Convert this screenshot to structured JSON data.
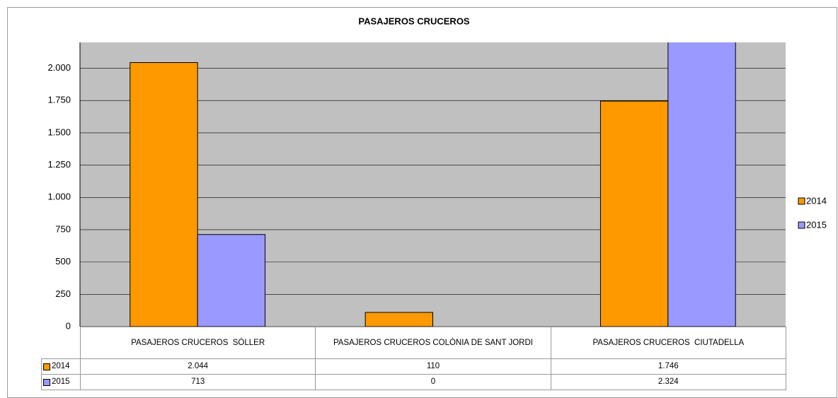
{
  "chart_data": {
    "type": "bar",
    "title": "PASAJEROS CRUCEROS",
    "categories": [
      "PASAJEROS CRUCEROS  SÓLLER",
      "PASAJEROS CRUCEROS COLÒNIA DE SANT JORDI",
      "PASAJEROS CRUCEROS  CIUTADELLA"
    ],
    "series": [
      {
        "name": "2014",
        "color": "#ff9900",
        "values": [
          2044,
          110,
          1746
        ],
        "value_labels": [
          "2.044",
          "110",
          "1.746"
        ]
      },
      {
        "name": "2015",
        "color": "#9999ff",
        "values": [
          713,
          0,
          2324
        ],
        "value_labels": [
          "713",
          "0",
          "2.324"
        ]
      }
    ],
    "ylim": [
      0,
      2200
    ],
    "yticks": [
      0,
      250,
      500,
      750,
      {
        "value": 1000,
        "label": "1.000"
      },
      {
        "value": 1250,
        "label": "1.250"
      },
      {
        "value": 1500,
        "label": "1.500"
      },
      {
        "value": 1750,
        "label": "1.750"
      },
      {
        "value": 2000,
        "label": "2.000"
      }
    ],
    "grid": true,
    "legend": "right",
    "data_table": true
  }
}
